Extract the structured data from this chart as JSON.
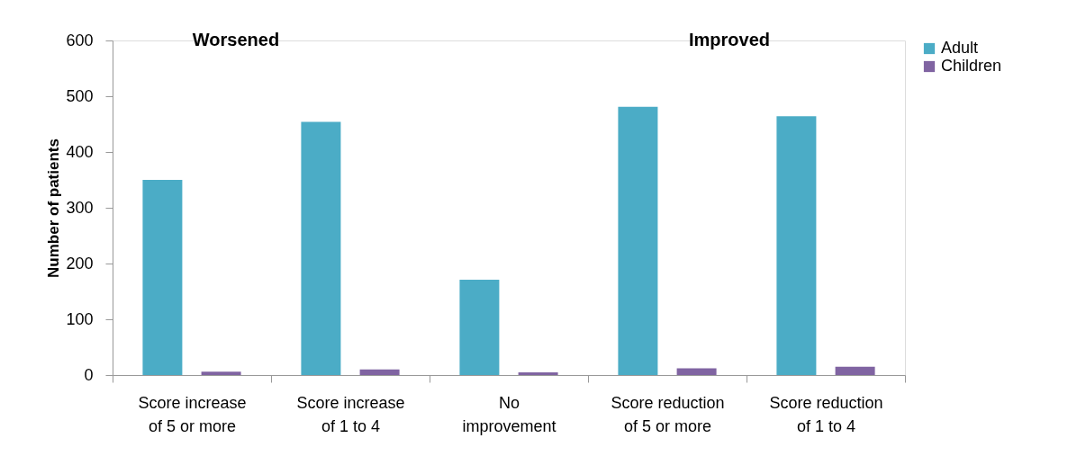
{
  "chart_data": {
    "type": "bar",
    "categories": [
      "Score increase of 5 or more",
      "Score increase of 1 to 4",
      "No improvement",
      "Score reduction of 5 or more",
      "Score reduction of 1 to 4"
    ],
    "series": [
      {
        "name": "Adult",
        "color": "#4bacc6",
        "values": [
          350,
          454,
          171,
          481,
          464
        ]
      },
      {
        "name": "Children",
        "color": "#8064a2",
        "values": [
          6,
          10,
          5,
          12,
          15
        ]
      }
    ],
    "ylabel": "Number of patients",
    "ylim": [
      0,
      600
    ],
    "yticks": [
      0,
      100,
      200,
      300,
      400,
      500,
      600
    ],
    "annotations": [
      "Worsened",
      "Improved"
    ],
    "grid": false,
    "legend": "right"
  }
}
